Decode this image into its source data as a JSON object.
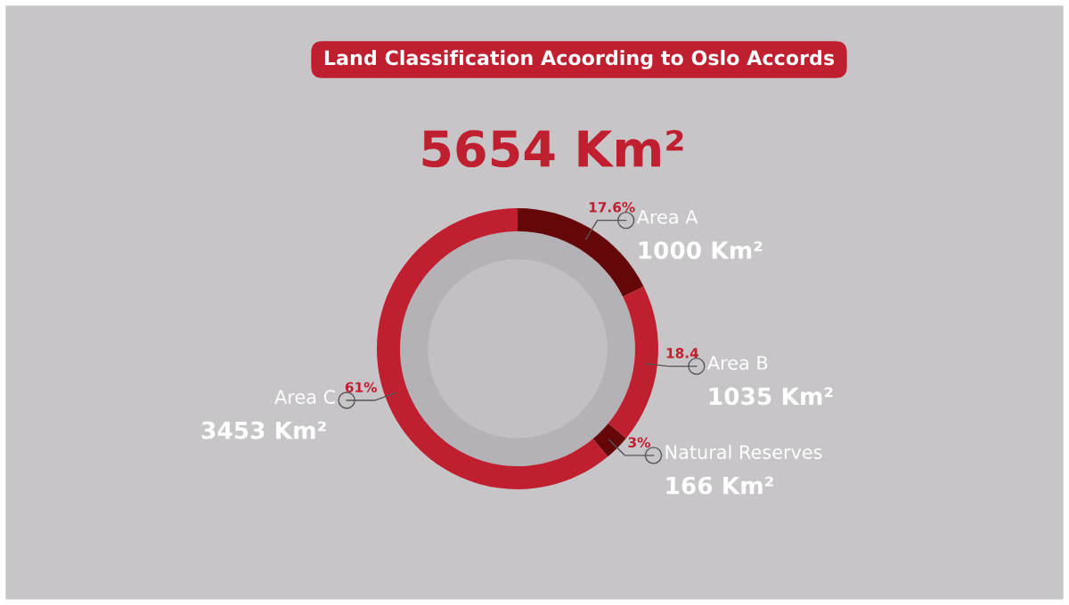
{
  "chart_data": {
    "type": "donut",
    "title": "Land Classification Acoording to Oslo Accords",
    "subtitle": "5654 Km²",
    "categories": [
      "Area A",
      "Area B",
      "Natural Reserves",
      "Area C"
    ],
    "values": [
      1000,
      1035,
      166,
      3453
    ],
    "colors": [
      "#650609",
      "#c01f2f",
      "#650609",
      "#c01f2f"
    ],
    "value_labels": [
      "1000 Km²",
      "1035 Km²",
      "166 Km²",
      "3453 Km²"
    ],
    "annotations": [
      "17.6%",
      "18.4",
      "3%",
      "61%"
    ]
  }
}
